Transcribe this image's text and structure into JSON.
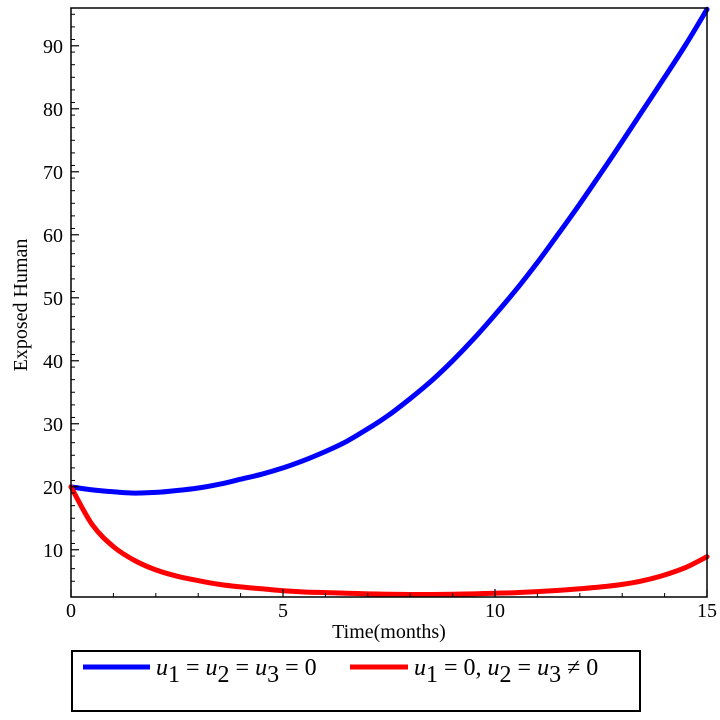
{
  "chart_data": {
    "type": "line",
    "xlabel": "Time(months)",
    "ylabel": "Exposed Human",
    "xlim": [
      0,
      15
    ],
    "ylim": [
      2.5,
      96
    ],
    "xticks": [
      0,
      5,
      10,
      15
    ],
    "yticks": [
      10,
      20,
      30,
      40,
      50,
      60,
      70,
      80,
      90
    ],
    "grid": false,
    "legend_position": "bottom",
    "series": [
      {
        "name": "u1 = u2 = u3 = 0",
        "color": "#0000ff",
        "x": [
          0,
          0.5,
          1,
          1.5,
          2,
          2.5,
          3,
          3.5,
          4,
          4.5,
          5,
          5.5,
          6,
          6.5,
          7,
          7.5,
          8,
          8.5,
          9,
          9.5,
          10,
          10.5,
          11,
          11.5,
          12,
          12.5,
          13,
          13.5,
          14,
          14.5,
          15
        ],
        "y": [
          20,
          19.5,
          19.2,
          19.0,
          19.1,
          19.4,
          19.8,
          20.4,
          21.2,
          22.0,
          23.0,
          24.2,
          25.6,
          27.2,
          29.2,
          31.4,
          34.0,
          36.8,
          40.0,
          43.5,
          47.3,
          51.3,
          55.6,
          60.2,
          64.9,
          69.8,
          74.8,
          79.9,
          85.0,
          90.2,
          95.8
        ]
      },
      {
        "name": "u1 = 0,  u2 = u3 ≠ 0",
        "color": "#ff0000",
        "x": [
          0,
          0.5,
          1,
          1.5,
          2,
          2.5,
          3,
          3.5,
          4,
          4.5,
          5,
          5.5,
          6,
          6.5,
          7,
          7.5,
          8,
          8.5,
          9,
          9.5,
          10,
          10.5,
          11,
          11.5,
          12,
          12.5,
          13,
          13.5,
          14,
          14.5,
          15
        ],
        "y": [
          20,
          14.0,
          10.5,
          8.3,
          6.8,
          5.8,
          5.1,
          4.5,
          4.1,
          3.8,
          3.5,
          3.3,
          3.2,
          3.1,
          3.0,
          2.95,
          2.9,
          2.9,
          2.95,
          3.0,
          3.1,
          3.2,
          3.35,
          3.55,
          3.8,
          4.1,
          4.5,
          5.1,
          6.0,
          7.2,
          8.9
        ]
      }
    ]
  },
  "legend": {
    "item1": {
      "u": "u",
      "sub1": "1",
      "eq1": " = ",
      "u2": "u",
      "sub2": "2",
      "eq2": " = ",
      "u3": "u",
      "sub3": "3",
      "eq3": " = 0"
    },
    "item2": {
      "u": "u",
      "sub1": "1",
      "eq1": " = 0,  ",
      "u2": "u",
      "sub2": "2",
      "eq2": " = ",
      "u3": "u",
      "sub3": "3",
      "eq3": " ≠ 0"
    }
  }
}
